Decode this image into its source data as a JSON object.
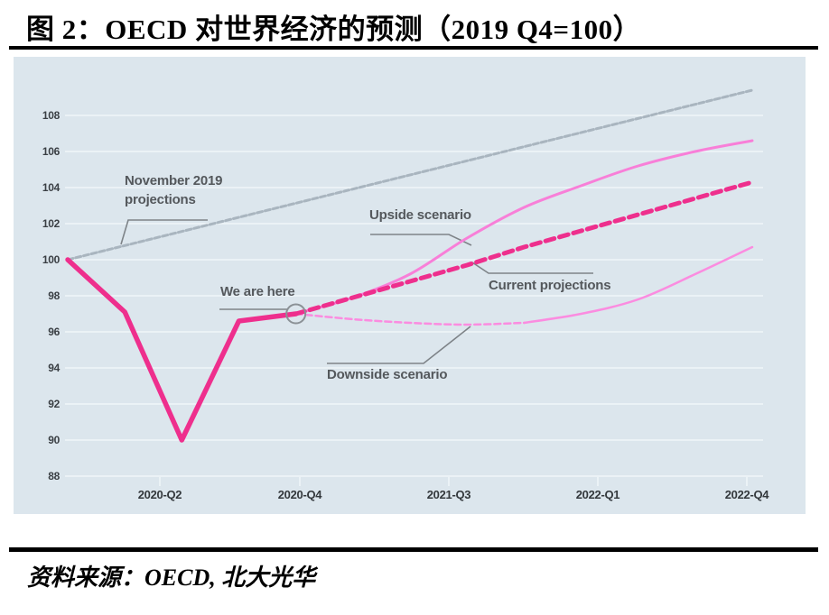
{
  "header": {
    "title": "图 2：OECD 对世界经济的预测（2019 Q4=100）"
  },
  "footer": {
    "source": "资料来源：OECD, 北大光华"
  },
  "chart_data": {
    "type": "line",
    "title": "OECD 对世界经济的预测（2019 Q4=100）",
    "x_unit": "quarters since 2019-Q4 (q0 = 2019-Q4, index 100)",
    "x_tick_labels": [
      "2020-Q2",
      "2020-Q4",
      "2021-Q3",
      "2022-Q1",
      "2022-Q4"
    ],
    "y_ticks": [
      88,
      90,
      92,
      94,
      96,
      98,
      100,
      102,
      104,
      106,
      108
    ],
    "ylim": [
      87,
      110.5
    ],
    "xlim_quarters": [
      0,
      12
    ],
    "grid": "horizontal white lines on light blue panel",
    "panel_color": "#dce6ed",
    "grid_color": "#f0f6f9",
    "annotations": {
      "november": "November 2019\nprojections",
      "we_are_here": "We are here",
      "upside": "Upside scenario",
      "current": "Current projections",
      "downside": "Downside scenario"
    },
    "marker": {
      "label": "We are here",
      "q": 4,
      "value": 97.0,
      "color": "#8b9196"
    },
    "series": [
      {
        "key": "november-2019-projections",
        "name": "November 2019 projections",
        "color": "#a9b5bf",
        "width": 3,
        "dash": "6 3",
        "smooth": false,
        "points": [
          [
            0,
            100
          ],
          [
            12,
            109.4
          ]
        ]
      },
      {
        "key": "upside-scenario",
        "name": "Upside scenario",
        "color": "#f87fd8",
        "width": 3,
        "dash": null,
        "smooth": true,
        "points": [
          [
            4,
            97.0
          ],
          [
            5,
            97.9
          ],
          [
            6,
            99.2
          ],
          [
            7,
            101.2
          ],
          [
            8,
            102.9
          ],
          [
            9,
            104.1
          ],
          [
            10,
            105.2
          ],
          [
            11,
            106.0
          ],
          [
            12,
            106.6
          ]
        ]
      },
      {
        "key": "downside-scenario",
        "name": "Downside scenario",
        "color": "#fb8ce0",
        "width": 2.5,
        "dash": "7 4",
        "smooth": true,
        "segments": [
          {
            "from": 4,
            "to": 8,
            "dash": "7 4"
          },
          {
            "from": 8,
            "to": 12,
            "dash": null
          }
        ],
        "points": [
          [
            4,
            97.0
          ],
          [
            5,
            96.7
          ],
          [
            6,
            96.5
          ],
          [
            7,
            96.4
          ],
          [
            8,
            96.5
          ],
          [
            9,
            97.0
          ],
          [
            10,
            97.8
          ],
          [
            11,
            99.2
          ],
          [
            12,
            100.7
          ]
        ]
      },
      {
        "key": "actual-path",
        "name": "",
        "color": "#ee2f8d",
        "width": 5.5,
        "dash": null,
        "smooth": false,
        "points": [
          [
            0,
            100
          ],
          [
            1,
            97.1
          ],
          [
            2,
            90.0
          ],
          [
            3,
            96.6
          ],
          [
            4,
            97.0
          ]
        ]
      },
      {
        "key": "current-projections",
        "name": "Current projections",
        "color": "#ee2f8d",
        "width": 5,
        "dash": "10 6",
        "smooth": false,
        "points": [
          [
            4,
            97.0
          ],
          [
            5,
            97.9
          ],
          [
            6,
            98.8
          ],
          [
            7,
            99.7
          ],
          [
            8,
            100.7
          ],
          [
            9,
            101.6
          ],
          [
            10,
            102.5
          ],
          [
            11,
            103.4
          ],
          [
            12,
            104.3
          ]
        ]
      }
    ]
  }
}
